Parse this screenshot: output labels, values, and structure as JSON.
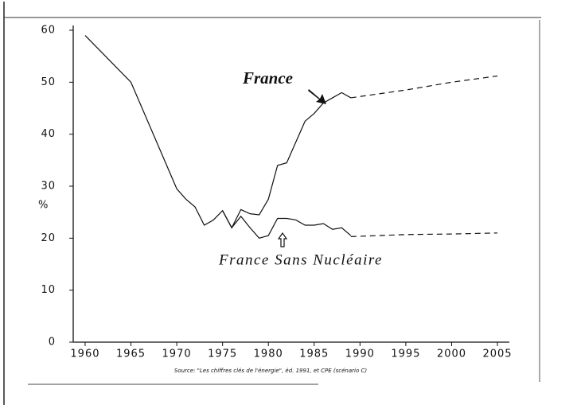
{
  "chart_data": {
    "type": "line",
    "y_label": "%",
    "source": "Source: \"Les chiffres clés de l'énergie\", éd. 1991, et CPE (scénario C)",
    "xlim": [
      1958.7,
      2006.3
    ],
    "ylim": [
      0,
      60
    ],
    "xticks": [
      1960,
      1965,
      1970,
      1975,
      1980,
      1985,
      1990,
      1995,
      2000,
      2005
    ],
    "yticks": [
      0,
      10,
      20,
      30,
      40,
      50,
      60
    ],
    "color": "#111",
    "series": [
      {
        "name": "France",
        "linestyle": "solid",
        "x": [
          1960,
          1965,
          1970,
          1971,
          1972,
          1973,
          1974,
          1975,
          1976,
          1977,
          1978,
          1979,
          1980,
          1981,
          1982,
          1983,
          1984,
          1985,
          1986,
          1987,
          1988,
          1989
        ],
        "values": [
          59,
          50,
          29.5,
          27.5,
          26,
          22.5,
          23.5,
          25.3,
          22,
          25.5,
          24.7,
          24.5,
          27.5,
          34,
          34.5,
          38.5,
          42.5,
          44,
          46,
          47,
          48,
          47
        ]
      },
      {
        "linestyle": "dashed",
        "x": [
          1989,
          1995,
          2000,
          2005
        ],
        "values": [
          47,
          48.5,
          50,
          51.2
        ]
      },
      {
        "name": "France Sans Nucléaire",
        "linestyle": "solid",
        "x": [
          1975,
          1976,
          1977,
          1978,
          1979,
          1980,
          1981,
          1982,
          1983,
          1984,
          1985,
          1986,
          1987,
          1988,
          1989
        ],
        "values": [
          25.3,
          22,
          24.2,
          22,
          20,
          20.5,
          23.8,
          23.8,
          23.5,
          22.5,
          22.5,
          22.8,
          21.7,
          22,
          20.5
        ]
      },
      {
        "linestyle": "dashed",
        "x": [
          1989,
          1995,
          2000,
          2005
        ],
        "values": [
          20.3,
          20.7,
          20.8,
          21
        ]
      }
    ]
  }
}
